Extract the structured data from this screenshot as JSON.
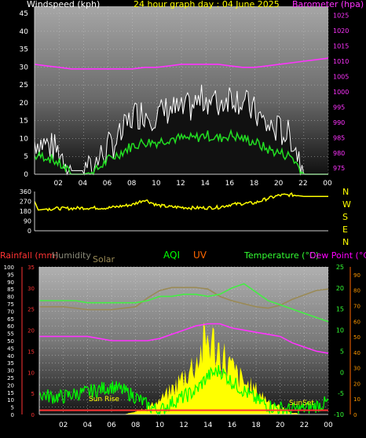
{
  "colors": {
    "background": "#000000",
    "wind_label": "#ffffff",
    "title": "#ffff00",
    "barometer": "#ff33ff",
    "gust": "#ffffff",
    "wind_avg": "#22dd22",
    "direction": "#ffff00",
    "compass": "#ffff00",
    "rainfall": "#ff3333",
    "humidity": "#888877",
    "solar": "#9a8a55",
    "aqi": "#00ff00",
    "uv": "#ff6600",
    "temperature": "#33ff33",
    "dewpoint": "#ff00ff",
    "dew_line": "#ff33ff",
    "sun": "#ffff00",
    "orange_fill": "#ff9900"
  },
  "header": {
    "wind_title": "Windspeed (kph)",
    "center_title": "24 hour graph day : 04 June 2025",
    "baro_title": "Barometer (hpa)"
  },
  "compass": [
    "N",
    "W",
    "S",
    "E",
    "N"
  ],
  "bottom_header": {
    "rainfall": "Rainfall (mm)",
    "humidity": "Humidity",
    "solar": "Solar",
    "aqi": "AQI",
    "uv": "UV",
    "temperature": "Temperature (°C)",
    "dewpoint": "Dew Point (°C)"
  },
  "annotations": {
    "sunrise": "Sun Rise",
    "sunset": "SunSet"
  },
  "chart_data": [
    {
      "type": "line",
      "name": "wind-barometer",
      "x_ticks": [
        "02",
        "04",
        "06",
        "08",
        "10",
        "12",
        "14",
        "16",
        "18",
        "20",
        "22",
        "00"
      ],
      "y_left_ticks": [
        0,
        5,
        10,
        15,
        20,
        25,
        30,
        35,
        40,
        45
      ],
      "ylim_left": [
        0,
        47
      ],
      "y_right_ticks": [
        975,
        980,
        985,
        990,
        995,
        1000,
        1005,
        1010,
        1015,
        1020,
        1025
      ],
      "ylim_right": [
        973,
        1028
      ],
      "hours": [
        0,
        1,
        2,
        3,
        4,
        5,
        6,
        7,
        8,
        9,
        10,
        11,
        12,
        13,
        14,
        15,
        16,
        17,
        18,
        19,
        20,
        21,
        22,
        23,
        24
      ],
      "gust": [
        8,
        7,
        5,
        1,
        1,
        2,
        6,
        9,
        15,
        16,
        15,
        17,
        16,
        18,
        20,
        18,
        21,
        19,
        16,
        12,
        11,
        9,
        0,
        0,
        0
      ],
      "wind_avg": [
        5,
        5,
        3,
        0,
        0,
        1,
        4,
        6,
        8,
        9,
        9,
        10,
        10,
        10,
        11,
        10,
        11,
        10,
        9,
        7,
        6,
        5,
        0,
        0,
        0
      ],
      "barometer": [
        1009,
        1008.5,
        1008,
        1007.5,
        1007.5,
        1007.5,
        1007.5,
        1007.5,
        1007.5,
        1008,
        1008,
        1008.5,
        1009,
        1009,
        1009,
        1009,
        1008.5,
        1008,
        1008,
        1008.5,
        1009,
        1009.5,
        1010,
        1010.5,
        1011
      ]
    },
    {
      "type": "line",
      "name": "wind-direction",
      "y_ticks": [
        0,
        90,
        180,
        270,
        360
      ],
      "ylim": [
        0,
        360
      ],
      "hours": [
        0,
        0.3,
        1,
        2,
        3,
        4,
        5,
        6,
        7,
        8,
        9,
        10,
        11,
        12,
        13,
        14,
        15,
        16,
        17,
        18,
        19,
        20,
        21,
        22,
        23,
        24
      ],
      "values": [
        270,
        190,
        200,
        205,
        205,
        210,
        210,
        210,
        225,
        240,
        285,
        235,
        220,
        215,
        210,
        210,
        215,
        240,
        250,
        255,
        295,
        325,
        330,
        315,
        315,
        315
      ]
    },
    {
      "type": "line",
      "name": "multi",
      "x_ticks": [
        "02",
        "04",
        "06",
        "08",
        "10",
        "12",
        "14",
        "16",
        "18",
        "20",
        "22",
        "00"
      ],
      "y_left_ticks": [
        0,
        5,
        10,
        15,
        20,
        25,
        30,
        35,
        40,
        45,
        50,
        55,
        60,
        65,
        70,
        75,
        80,
        85,
        90,
        95,
        100
      ],
      "ylim_left": [
        0,
        100
      ],
      "rain_ticks": [
        0,
        5,
        10,
        15,
        20,
        25,
        30,
        35
      ],
      "temp_ticks": [
        -10,
        -5,
        0,
        5,
        10,
        15,
        20,
        25
      ],
      "ylim_temp": [
        -10,
        25
      ],
      "aqi_ticks": [
        0,
        10,
        20,
        30,
        40,
        50,
        60,
        70,
        80,
        90
      ],
      "hours": [
        0,
        1,
        2,
        3,
        4,
        5,
        6,
        7,
        8,
        9,
        10,
        11,
        12,
        13,
        14,
        15,
        16,
        17,
        18,
        19,
        20,
        21,
        22,
        23,
        24
      ],
      "humidity": [
        73,
        73,
        73,
        72,
        71,
        71,
        71,
        72,
        73,
        79,
        84,
        86,
        86,
        86,
        85,
        80,
        77,
        75,
        73,
        72,
        74,
        78,
        81,
        84,
        85
      ],
      "temperature": [
        17,
        17,
        17,
        17,
        16.5,
        16.5,
        16.5,
        16.5,
        16.5,
        17,
        18,
        18,
        18.5,
        18.5,
        18,
        18.5,
        20,
        21,
        19,
        17,
        16,
        15,
        14,
        13,
        12
      ],
      "dewpoint": [
        8.5,
        8.5,
        8.5,
        8.5,
        8.5,
        8,
        7.5,
        7.5,
        7.5,
        7.5,
        8,
        9,
        10,
        11,
        11.5,
        11.5,
        10.5,
        10,
        9.5,
        9,
        8.5,
        7,
        6,
        5,
        4.5
      ],
      "aqi": [
        14,
        12,
        12,
        14,
        15,
        17,
        19,
        16,
        12,
        6,
        2,
        8,
        12,
        16,
        26,
        30,
        22,
        16,
        10,
        6,
        4,
        3,
        4,
        6,
        8
      ],
      "solar": [
        0,
        0,
        0,
        0,
        0,
        0,
        0,
        0,
        2,
        4,
        8,
        14,
        22,
        30,
        44,
        36,
        26,
        18,
        14,
        8,
        4,
        1,
        0,
        0,
        0
      ],
      "uv": [
        0,
        0,
        0,
        0,
        0,
        0,
        0,
        0,
        0,
        1,
        3,
        8,
        14,
        22,
        30,
        24,
        18,
        12,
        8,
        4,
        1,
        0,
        0,
        0,
        0
      ],
      "rainfall": [
        1,
        1,
        1,
        1,
        1,
        1,
        1,
        1,
        1,
        1,
        1,
        1,
        1,
        1,
        1,
        1,
        1,
        1,
        1,
        1,
        1,
        1,
        1,
        1,
        1
      ]
    }
  ]
}
